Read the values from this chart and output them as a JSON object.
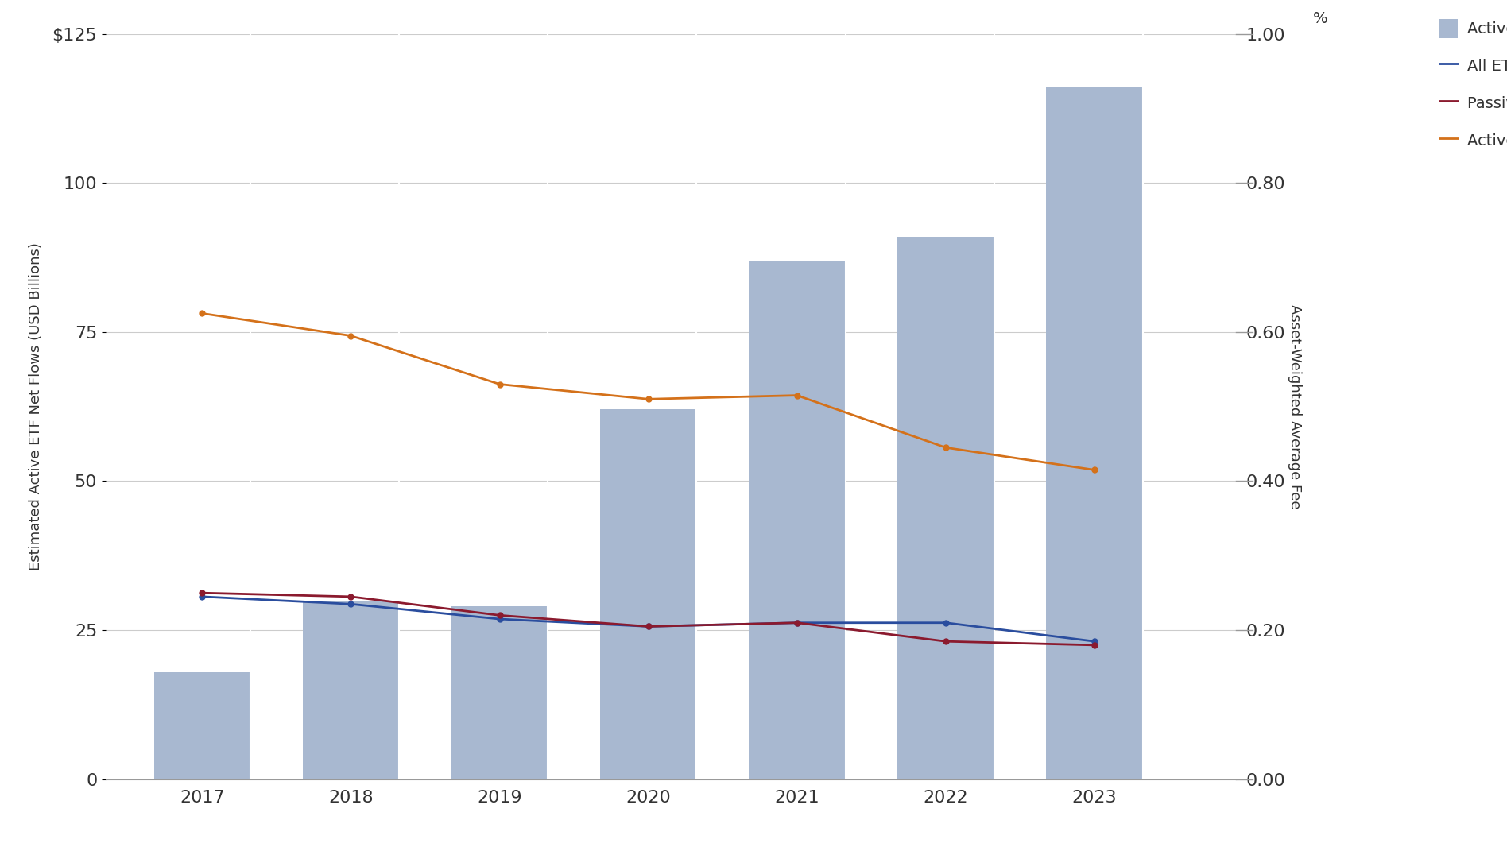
{
  "years": [
    2017,
    2018,
    2019,
    2020,
    2021,
    2022,
    2023
  ],
  "bar_values": [
    18,
    30,
    29,
    62,
    87,
    91,
    116
  ],
  "bar_color": "#a8b8d0",
  "all_etf_fee": [
    0.245,
    0.235,
    0.215,
    0.205,
    0.21,
    0.21,
    0.185
  ],
  "passive_etf_fee": [
    0.25,
    0.245,
    0.22,
    0.205,
    0.21,
    0.185,
    0.18
  ],
  "active_etf_fee": [
    0.625,
    0.595,
    0.53,
    0.51,
    0.515,
    0.445,
    0.415
  ],
  "all_etf_fee_color": "#2a4d9e",
  "passive_etf_fee_color": "#8b1a2e",
  "active_etf_fee_color": "#d4711a",
  "left_ylim": [
    0,
    125
  ],
  "right_ylim": [
    0.0,
    1.0
  ],
  "left_yticks": [
    0,
    25,
    50,
    75,
    100,
    125
  ],
  "left_yticklabels": [
    "0",
    "25",
    "50",
    "75",
    "100",
    "$125"
  ],
  "right_yticks": [
    0.0,
    0.2,
    0.4,
    0.6,
    0.8,
    1.0
  ],
  "right_yticklabels": [
    "0.00",
    "0.20",
    "0.40",
    "0.60",
    "0.80",
    "1.00"
  ],
  "right_ytop_label": "%",
  "left_ylabel": "Estimated Active ETF Net Flows (USD Billions)",
  "right_ylabel": "Asset-Weighted Average Fee",
  "legend_labels": [
    "Active ETF Flows",
    "All ETF Fee",
    "Passive ETF Fee",
    "Active ETF Fee"
  ],
  "background_color": "#ffffff",
  "grid_color": "#cccccc",
  "font_color": "#333333",
  "tick_color": "#555555"
}
